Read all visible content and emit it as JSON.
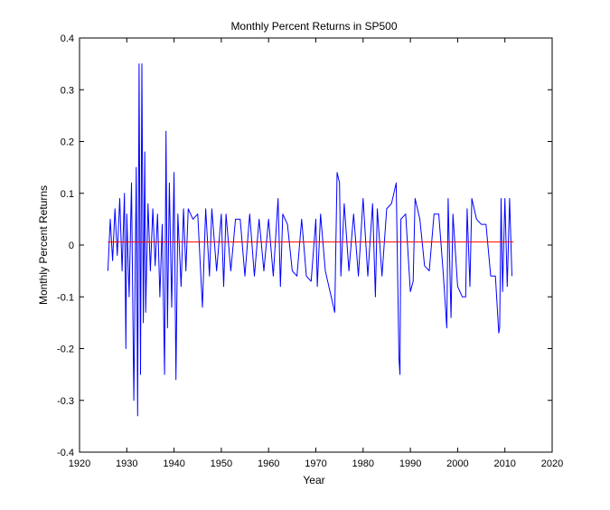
{
  "chart_data": {
    "type": "line",
    "title": "Monthly Percent Returns in SP500",
    "xlabel": "Year",
    "ylabel": "Monthly Percent Returns",
    "xlim": [
      1920,
      2020
    ],
    "ylim": [
      -0.4,
      0.4
    ],
    "xticks": [
      1920,
      1930,
      1940,
      1950,
      1960,
      1970,
      1980,
      1990,
      2000,
      2010,
      2020
    ],
    "yticks": [
      -0.4,
      -0.3,
      -0.2,
      -0.1,
      0,
      0.1,
      0.2,
      0.3,
      0.4
    ],
    "grid": false,
    "legend": "none",
    "series": [
      {
        "color": "#0000ff",
        "x": [
          1926.0,
          1926.5,
          1927.0,
          1927.5,
          1928.0,
          1928.5,
          1929.0,
          1929.5,
          1929.8,
          1930.0,
          1930.5,
          1931.0,
          1931.5,
          1932.0,
          1932.3,
          1932.6,
          1932.9,
          1933.2,
          1933.5,
          1933.8,
          1934.0,
          1934.5,
          1935.0,
          1935.5,
          1936.0,
          1936.5,
          1937.0,
          1937.5,
          1938.0,
          1938.3,
          1938.6,
          1939.0,
          1939.5,
          1940.0,
          1940.4,
          1940.8,
          1941.5,
          1942.0,
          1942.5,
          1943.0,
          1944.0,
          1945.0,
          1946.0,
          1946.7,
          1947.5,
          1948.0,
          1949.0,
          1950.0,
          1950.5,
          1951.0,
          1952.0,
          1953.0,
          1954.0,
          1955.0,
          1956.0,
          1957.0,
          1958.0,
          1959.0,
          1960.0,
          1961.0,
          1962.0,
          1962.5,
          1963.0,
          1964.0,
          1965.0,
          1966.0,
          1967.0,
          1968.0,
          1969.0,
          1970.0,
          1970.3,
          1971.0,
          1972.0,
          1973.0,
          1974.0,
          1974.5,
          1975.0,
          1975.3,
          1976.0,
          1977.0,
          1978.0,
          1979.0,
          1980.0,
          1981.0,
          1982.0,
          1982.6,
          1983.0,
          1984.0,
          1985.0,
          1986.0,
          1987.0,
          1987.6,
          1987.8,
          1988.0,
          1989.0,
          1990.0,
          1990.6,
          1991.0,
          1992.0,
          1993.0,
          1994.0,
          1995.0,
          1996.0,
          1997.0,
          1997.7,
          1998.0,
          1998.6,
          1999.0,
          2000.0,
          2001.0,
          2001.7,
          2002.0,
          2002.6,
          2003.0,
          2004.0,
          2005.0,
          2006.0,
          2007.0,
          2008.0,
          2008.7,
          2008.9,
          2009.2,
          2009.5,
          2010.0,
          2010.5,
          2011.0,
          2011.5
        ],
        "y": [
          -0.05,
          0.05,
          -0.03,
          0.07,
          -0.02,
          0.09,
          -0.05,
          0.1,
          -0.2,
          0.06,
          -0.1,
          0.12,
          -0.3,
          0.15,
          -0.33,
          0.35,
          -0.25,
          0.35,
          -0.15,
          0.18,
          -0.13,
          0.08,
          -0.05,
          0.07,
          -0.04,
          0.06,
          -0.1,
          0.04,
          -0.25,
          0.22,
          -0.16,
          0.12,
          -0.12,
          0.14,
          -0.26,
          0.06,
          -0.08,
          0.07,
          -0.05,
          0.07,
          0.05,
          0.06,
          -0.12,
          0.07,
          -0.06,
          0.07,
          -0.05,
          0.06,
          -0.08,
          0.06,
          -0.05,
          0.05,
          0.05,
          -0.06,
          0.06,
          -0.06,
          0.05,
          -0.05,
          0.05,
          -0.06,
          0.09,
          -0.08,
          0.06,
          0.04,
          -0.05,
          -0.06,
          0.05,
          -0.06,
          -0.07,
          0.05,
          -0.08,
          0.06,
          -0.05,
          -0.09,
          -0.13,
          0.14,
          0.12,
          -0.06,
          0.08,
          -0.05,
          0.06,
          -0.06,
          0.09,
          -0.06,
          0.08,
          -0.1,
          0.07,
          -0.06,
          0.07,
          0.08,
          0.12,
          -0.22,
          -0.25,
          0.05,
          0.06,
          -0.09,
          -0.07,
          0.09,
          0.05,
          -0.04,
          -0.05,
          0.06,
          0.06,
          -0.06,
          -0.16,
          0.09,
          -0.14,
          0.06,
          -0.08,
          -0.1,
          -0.1,
          0.07,
          -0.08,
          0.09,
          0.05,
          0.04,
          0.04,
          -0.06,
          -0.06,
          -0.17,
          -0.16,
          0.09,
          -0.09,
          0.09,
          -0.08,
          0.09,
          -0.06
        ]
      },
      {
        "color": "#ff0000",
        "x": [
          1926.0,
          2011.8
        ],
        "y": [
          0.006,
          0.006
        ]
      }
    ]
  }
}
